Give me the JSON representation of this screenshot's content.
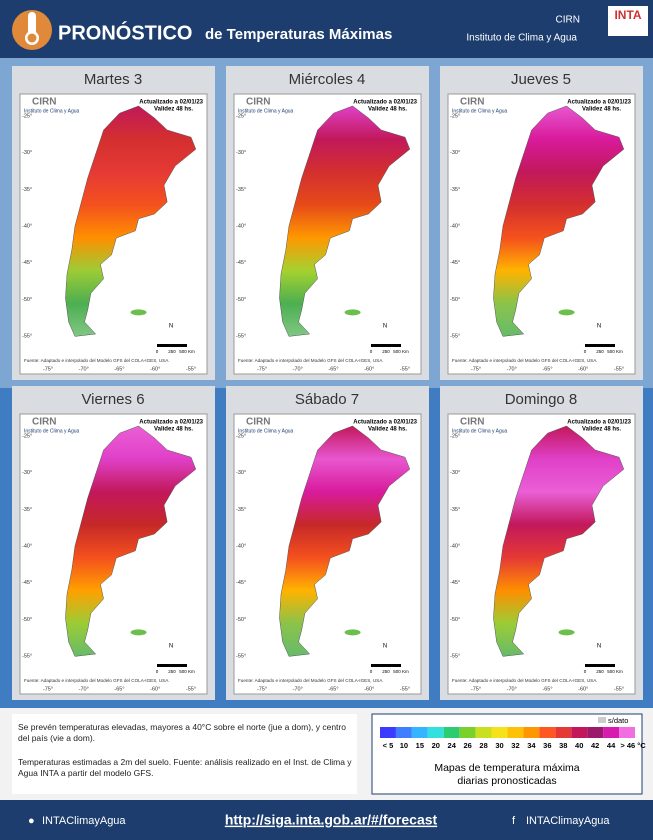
{
  "header": {
    "title_main": "PRONÓSTICO",
    "title_rest": "de Temperaturas  Máximas",
    "org": "CIRN",
    "institute": "Instituto de Clima y Agua",
    "logo": "INTA"
  },
  "map": {
    "org": "CIRN",
    "institute": "Instituto de Clima y Agua",
    "updated": "Actualizado a 02/01/23",
    "validity": "Validez 48 hs.",
    "source": "Fuente: Adaptado e interpolado del Modelo GFS del COLA-IGES, USA.",
    "north": "N",
    "scale": [
      "0",
      "250",
      "500 Km"
    ],
    "lat_labels": [
      "-25°",
      "-30°",
      "-35°",
      "-40°",
      "-45°",
      "-50°",
      "-55°"
    ],
    "lon_labels": [
      "-75°",
      "-70°",
      "-65°",
      "-60°",
      "-55°"
    ]
  },
  "panels": [
    {
      "day": "Martes 3",
      "colors": [
        "#c2185b",
        "#d32f2f",
        "#e53935",
        "#f4511e",
        "#ff8f00",
        "#9ccc35",
        "#4caf50",
        "#81c784"
      ]
    },
    {
      "day": "Miércoles 4",
      "colors": [
        "#e040c8",
        "#c2185b",
        "#d32f2f",
        "#e64a19",
        "#ff9800",
        "#a5d12f",
        "#4caf50",
        "#81c784"
      ]
    },
    {
      "day": "Jueves 5",
      "colors": [
        "#e857d0",
        "#d81b9c",
        "#c2185b",
        "#d32f2f",
        "#f4511e",
        "#ffb300",
        "#8bc34a",
        "#66bb6a"
      ]
    },
    {
      "day": "Viernes 6",
      "colors": [
        "#ea5fd6",
        "#e040c8",
        "#c2185b",
        "#c62828",
        "#f4511e",
        "#ffa000",
        "#9ccc35",
        "#66bb6a"
      ]
    },
    {
      "day": "Sábado 7",
      "colors": [
        "#c2185b",
        "#e857d0",
        "#d81b9c",
        "#c62828",
        "#f4511e",
        "#ffb300",
        "#8bc34a",
        "#66bb6a"
      ]
    },
    {
      "day": "Domingo 8",
      "colors": [
        "#c2185b",
        "#e040c8",
        "#ea5fd6",
        "#c2185b",
        "#e53935",
        "#ff8f00",
        "#9ccc35",
        "#66bb6a"
      ]
    }
  ],
  "notes": [
    "Se prevén temperaturas elevadas, mayores a 40°C sobre el norte (jue a dom), y centro del país (vie a dom).",
    "Temperaturas estimadas a 2m del suelo. Fuente: análisis realizado en el Inst. de Clima y Agua    INTA a partir del modelo GFS."
  ],
  "legend": {
    "no_data": "s/dato",
    "labels": [
      "< 5",
      "10",
      "15",
      "20",
      "24",
      "26",
      "28",
      "30",
      "32",
      "34",
      "36",
      "38",
      "40",
      "42",
      "44",
      "> 46 °C"
    ],
    "colors": [
      "#3b3bff",
      "#3f7fff",
      "#33b5ff",
      "#33e0e0",
      "#2ecc71",
      "#7bd12b",
      "#c8e020",
      "#f5e21a",
      "#ffc107",
      "#ff9800",
      "#ff5722",
      "#e53935",
      "#c2185b",
      "#9c1a6b",
      "#d81bb0",
      "#f06ee0"
    ],
    "caption": [
      "Mapas de temperatura máxima",
      "diarias pronosticadas"
    ]
  },
  "footer": {
    "left": "INTAClimayAgua",
    "url": "http://siga.inta.gob.ar/#/forecast",
    "right": "INTAClimayAgua"
  }
}
